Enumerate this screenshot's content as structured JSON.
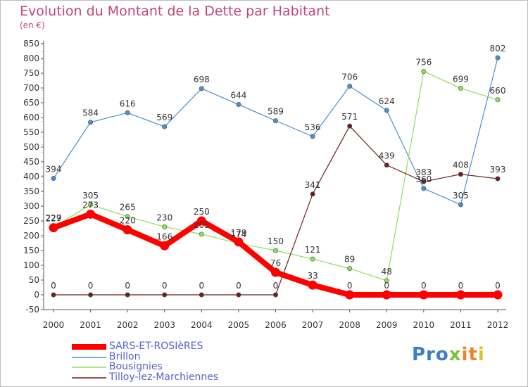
{
  "chart_data": {
    "type": "line",
    "title": "Evolution du Montant de la Dette par Habitant",
    "subtitle": "(en €)",
    "xlabel": "",
    "ylabel": "",
    "ylim": [
      -50,
      850
    ],
    "y_ticks": [
      -50,
      0,
      50,
      100,
      150,
      200,
      250,
      300,
      350,
      400,
      450,
      500,
      550,
      600,
      650,
      700,
      750,
      800,
      850
    ],
    "x": [
      2000,
      2001,
      2002,
      2003,
      2004,
      2005,
      2006,
      2007,
      2008,
      2009,
      2010,
      2011,
      2012
    ],
    "grid": false,
    "legend_position": "bottom-left",
    "series": [
      {
        "name": "SARS-ET-ROSIèRES",
        "color": "#ff0000",
        "values": [
          227,
          273,
          220,
          166,
          250,
          179,
          76,
          33,
          0,
          0,
          0,
          0,
          0
        ],
        "labels": [
          "227",
          "273",
          "220",
          "166",
          "250",
          "179",
          "76",
          "33",
          "0",
          "0",
          "0",
          "0",
          "0"
        ]
      },
      {
        "name": "Brillon",
        "color": "#4a8fcf",
        "values": [
          394,
          584,
          616,
          569,
          698,
          644,
          589,
          536,
          706,
          624,
          360,
          305,
          802
        ],
        "labels": [
          "394",
          "584",
          "616",
          "569",
          "698",
          "644",
          "589",
          "536",
          "706",
          "624",
          "360",
          "305",
          "802"
        ]
      },
      {
        "name": "Bousignies",
        "color": "#8ddf5a",
        "values": [
          229,
          305,
          265,
          230,
          205,
          174,
          150,
          121,
          89,
          48,
          756,
          699,
          660
        ],
        "labels": [
          "229",
          "305",
          "265",
          "230",
          "205",
          "174",
          "150",
          "121",
          "89",
          "48",
          "756",
          "699",
          "660"
        ]
      },
      {
        "name": "Tilloy-lez-Marchiennes",
        "color": "#6b1f1f",
        "values": [
          0,
          0,
          0,
          0,
          0,
          0,
          0,
          341,
          571,
          439,
          383,
          408,
          393
        ],
        "labels": [
          "0",
          "0",
          "0",
          "0",
          "0",
          "0",
          "0",
          "341",
          "571",
          "439",
          "383",
          "408",
          "393"
        ]
      }
    ]
  },
  "logo": {
    "text": "Proxiti",
    "part1": "Pro",
    "part2": "x",
    "part3": "it",
    "part4": "i"
  }
}
